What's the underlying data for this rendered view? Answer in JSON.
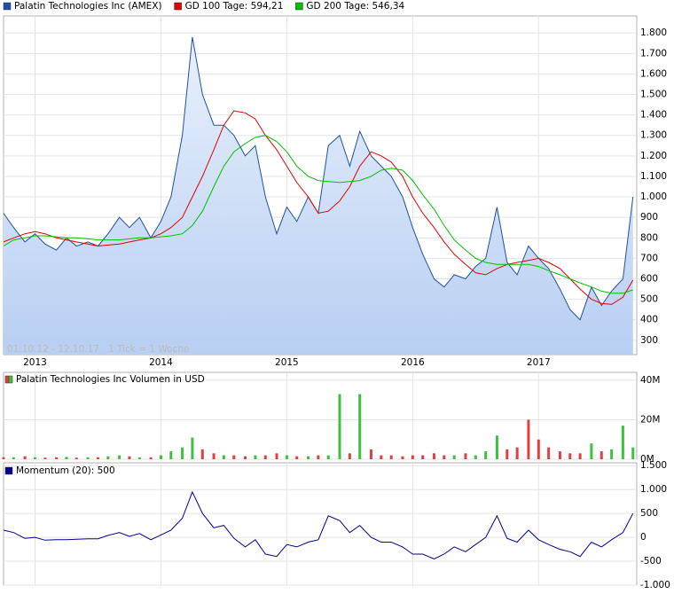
{
  "chart_data": [
    {
      "type": "line",
      "note": "01.10.12 - 12.10.17   1 Tick = 1 Woche",
      "x": [
        2012.75,
        2012.83,
        2012.92,
        2013,
        2013.08,
        2013.17,
        2013.25,
        2013.33,
        2013.42,
        2013.5,
        2013.58,
        2013.67,
        2013.75,
        2013.83,
        2013.92,
        2014,
        2014.08,
        2014.17,
        2014.25,
        2014.33,
        2014.42,
        2014.5,
        2014.58,
        2014.67,
        2014.75,
        2014.83,
        2014.92,
        2015,
        2015.08,
        2015.17,
        2015.25,
        2015.33,
        2015.42,
        2015.5,
        2015.58,
        2015.67,
        2015.75,
        2015.83,
        2015.92,
        2016,
        2016.08,
        2016.17,
        2016.25,
        2016.33,
        2016.42,
        2016.5,
        2016.58,
        2016.67,
        2016.75,
        2016.83,
        2016.92,
        2017,
        2017.08,
        2017.17,
        2017.25,
        2017.33,
        2017.42,
        2017.5,
        2017.58,
        2017.67,
        2017.75
      ],
      "xlim": [
        2012.75,
        2017.78
      ],
      "xticks": [
        2013,
        2014,
        2015,
        2016,
        2017
      ],
      "ylim": [
        230,
        1883
      ],
      "yticks": [
        300,
        400,
        500,
        600,
        700,
        800,
        900,
        {
          "value": 1000,
          "label": "1.000"
        },
        {
          "value": 1100,
          "label": "1.100"
        },
        {
          "value": 1200,
          "label": "1.200"
        },
        {
          "value": 1300,
          "label": "1.300"
        },
        {
          "value": 1400,
          "label": "1.400"
        },
        {
          "value": 1500,
          "label": "1.500"
        },
        {
          "value": 1600,
          "label": "1.600"
        },
        {
          "value": 1700,
          "label": "1.700"
        },
        {
          "value": 1800,
          "label": "1.800"
        }
      ],
      "grid": true,
      "series": [
        {
          "name": "Palatin Technologies Inc (AMEX)",
          "color": "#2050a0",
          "area": true,
          "values": [
            920,
            850,
            780,
            820,
            770,
            740,
            800,
            760,
            780,
            760,
            820,
            900,
            850,
            900,
            800,
            880,
            1000,
            1300,
            1780,
            1500,
            1350,
            1350,
            1300,
            1200,
            1250,
            1000,
            820,
            950,
            880,
            1000,
            920,
            1250,
            1300,
            1150,
            1320,
            1200,
            1150,
            1100,
            1000,
            850,
            720,
            600,
            560,
            620,
            600,
            660,
            700,
            950,
            680,
            620,
            760,
            700,
            650,
            550,
            450,
            400,
            560,
            470,
            540,
            600,
            1000
          ]
        },
        {
          "name": "GD 100 Tage: 594,21",
          "color": "#e00000",
          "values": [
            780,
            800,
            820,
            830,
            820,
            800,
            790,
            780,
            770,
            760,
            765,
            770,
            780,
            790,
            800,
            820,
            850,
            900,
            1000,
            1100,
            1230,
            1350,
            1420,
            1410,
            1380,
            1300,
            1230,
            1150,
            1070,
            1000,
            920,
            930,
            980,
            1050,
            1150,
            1220,
            1200,
            1170,
            1100,
            1000,
            920,
            850,
            780,
            720,
            670,
            630,
            620,
            650,
            670,
            680,
            690,
            700,
            680,
            650,
            600,
            550,
            500,
            480,
            475,
            510,
            594
          ]
        },
        {
          "name": "GD 200 Tage: 546,34",
          "color": "#00c000",
          "values": [
            760,
            790,
            800,
            810,
            810,
            805,
            800,
            800,
            795,
            790,
            790,
            790,
            795,
            800,
            800,
            805,
            810,
            820,
            860,
            930,
            1050,
            1150,
            1220,
            1260,
            1290,
            1300,
            1270,
            1220,
            1150,
            1100,
            1080,
            1075,
            1070,
            1075,
            1080,
            1100,
            1130,
            1140,
            1130,
            1080,
            1010,
            940,
            860,
            790,
            740,
            700,
            680,
            670,
            670,
            670,
            670,
            660,
            640,
            620,
            600,
            580,
            560,
            540,
            530,
            530,
            546
          ]
        }
      ]
    },
    {
      "type": "bar",
      "legend": "Palatin Technologies Inc Volumen in USD",
      "legend_colors": [
        "#e04040",
        "#40c040"
      ],
      "ylim": [
        0,
        44
      ],
      "yticks": [
        {
          "value": 0,
          "label": "0M"
        },
        {
          "value": 20,
          "label": "20M"
        },
        {
          "value": 40,
          "label": "40M"
        }
      ],
      "values": [
        1,
        1,
        1.5,
        1,
        0.8,
        1,
        1.2,
        0.8,
        1,
        1,
        1.5,
        2,
        1.5,
        1,
        1,
        2,
        4,
        6,
        11,
        5,
        3,
        2,
        2,
        1.5,
        2,
        2,
        3,
        2,
        1.5,
        1.5,
        2,
        2,
        33,
        3,
        33,
        5,
        2,
        2,
        1.5,
        2,
        2,
        3,
        2,
        2,
        3,
        2,
        4,
        12,
        5,
        6,
        20,
        10,
        6,
        4,
        3,
        3,
        8,
        4,
        5,
        17,
        6
      ],
      "colors": [
        "#e04040",
        "#40c040",
        "#e04040",
        "#40c040",
        "#e04040",
        "#e04040",
        "#40c040",
        "#e04040",
        "#40c040",
        "#e04040",
        "#40c040",
        "#40c040",
        "#e04040",
        "#40c040",
        "#e04040",
        "#40c040",
        "#40c040",
        "#40c040",
        "#40c040",
        "#e04040",
        "#e04040",
        "#40c040",
        "#e04040",
        "#e04040",
        "#40c040",
        "#e04040",
        "#e04040",
        "#40c040",
        "#e04040",
        "#40c040",
        "#e04040",
        "#40c040",
        "#40c040",
        "#e04040",
        "#40c040",
        "#e04040",
        "#e04040",
        "#e04040",
        "#e04040",
        "#e04040",
        "#e04040",
        "#e04040",
        "#e04040",
        "#40c040",
        "#e04040",
        "#40c040",
        "#40c040",
        "#40c040",
        "#e04040",
        "#e04040",
        "#e04040",
        "#e04040",
        "#e04040",
        "#e04040",
        "#e04040",
        "#e04040",
        "#40c040",
        "#e04040",
        "#40c040",
        "#40c040",
        "#40c040"
      ]
    },
    {
      "type": "line",
      "ylim": [
        -1000,
        1560
      ],
      "yticks": [
        {
          "value": -1000,
          "label": "-1.000"
        },
        -500,
        0,
        500,
        {
          "value": 1000,
          "label": "1.000"
        },
        {
          "value": 1500,
          "label": "1.500"
        }
      ],
      "series": [
        {
          "name": "Momentum (20): 500",
          "color": "#000090",
          "values": [
            150,
            100,
            -20,
            0,
            -60,
            -50,
            -50,
            -40,
            -30,
            -30,
            40,
            100,
            20,
            80,
            -50,
            50,
            150,
            400,
            950,
            500,
            200,
            250,
            -20,
            -200,
            -50,
            -350,
            -400,
            -150,
            -200,
            -100,
            -50,
            450,
            350,
            100,
            250,
            0,
            -100,
            -100,
            -200,
            -350,
            -350,
            -450,
            -350,
            -200,
            -300,
            -150,
            0,
            450,
            -20,
            -100,
            150,
            -50,
            -150,
            -250,
            -300,
            -400,
            -100,
            -200,
            -50,
            100,
            500
          ]
        }
      ]
    }
  ]
}
